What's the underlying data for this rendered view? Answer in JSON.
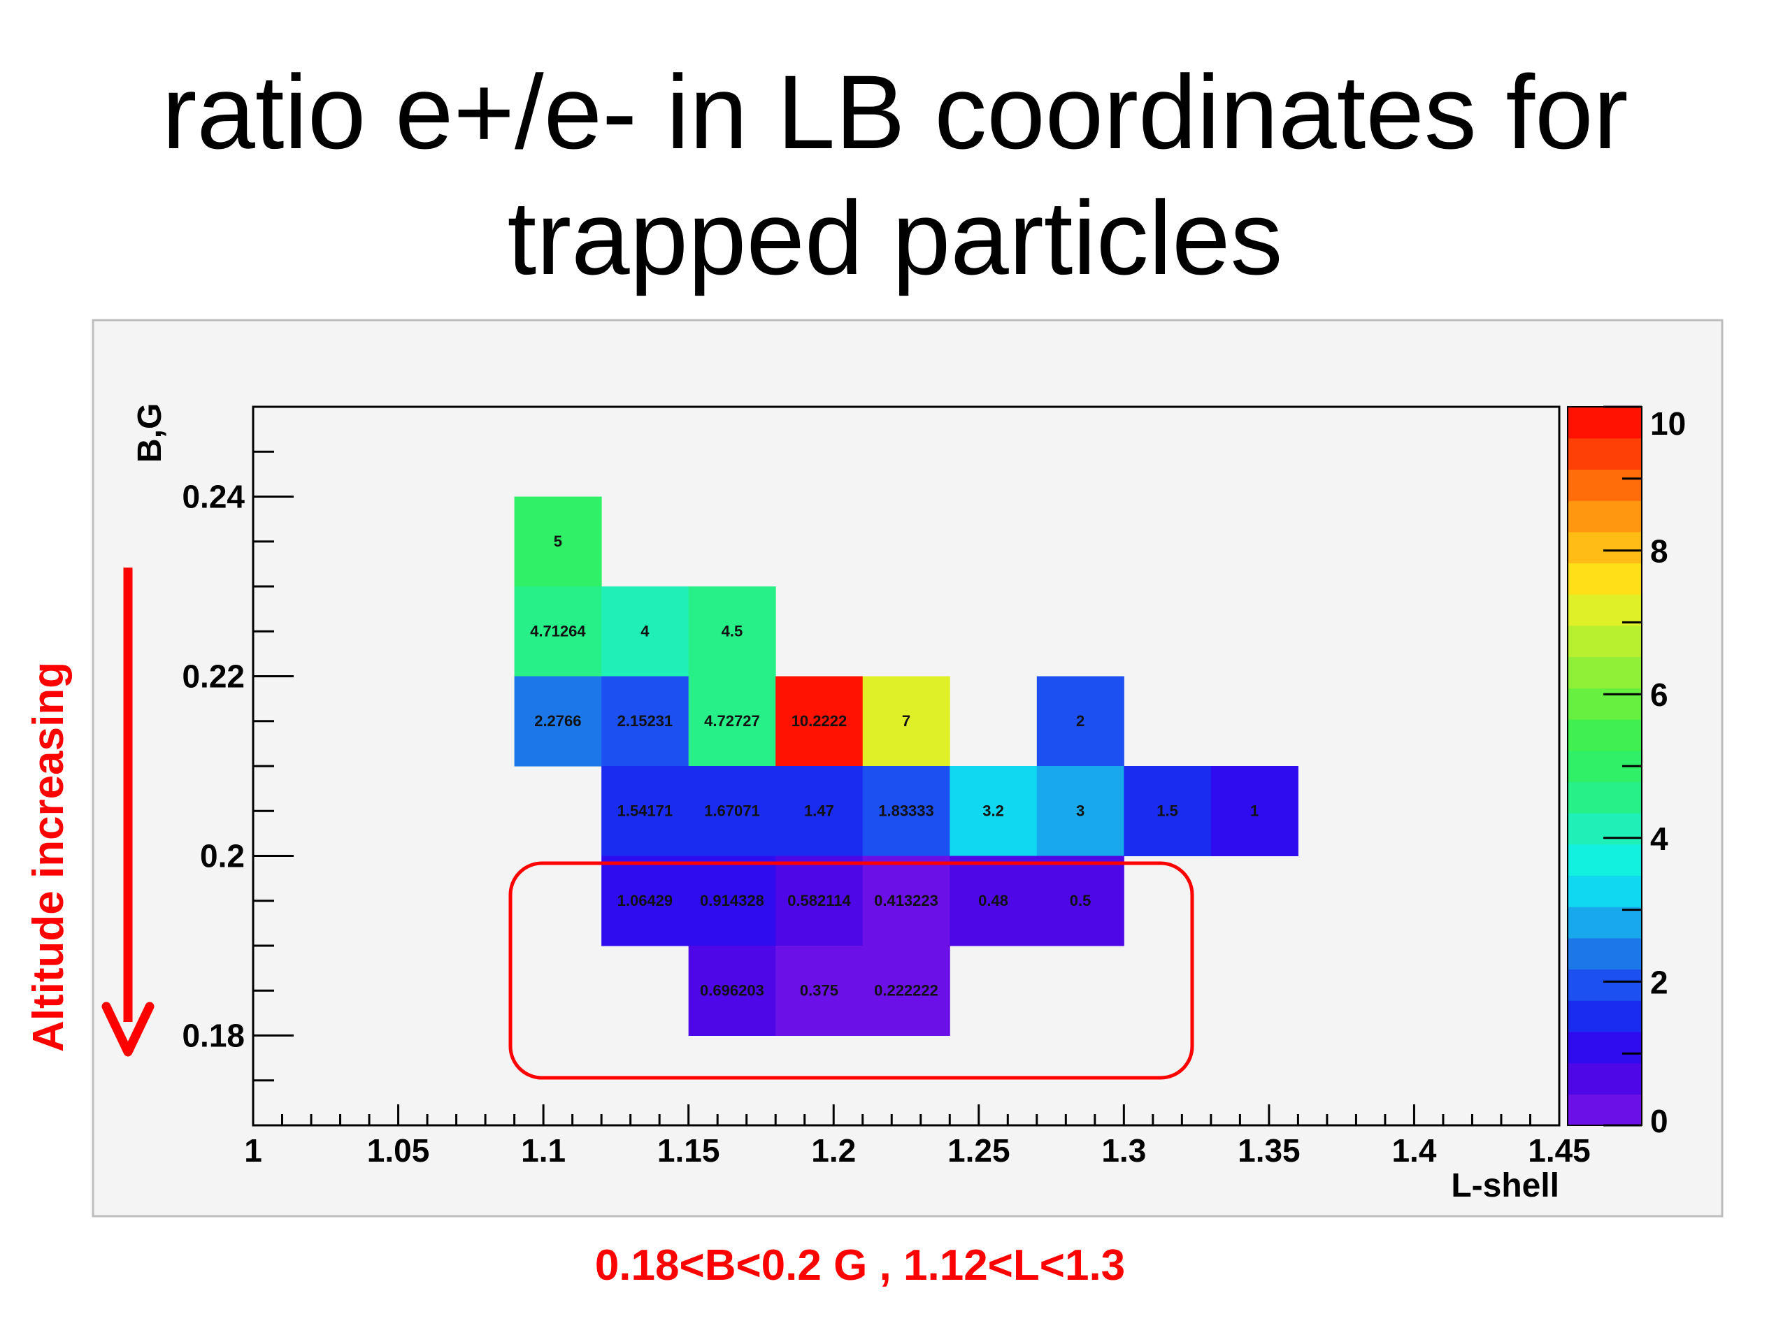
{
  "slide": {
    "title_line1": "ratio e+/e- in LB coordinates for",
    "title_line2": "trapped particles",
    "annotation_left": "Altitude increasing",
    "annotation_bottom": "0.18<B<0.2 G ,  1.12<L<1.3"
  },
  "colors": {
    "annotation": "#ff0000",
    "frame_bg": "#f4f4f4",
    "plot_bg": "#f4f4f4"
  },
  "chart_data": {
    "type": "heatmap",
    "xlabel": "L-shell",
    "ylabel": "B,G",
    "xlim": [
      1,
      1.45
    ],
    "ylim": [
      0.17,
      0.25
    ],
    "x_ticks": [
      "1",
      "1.05",
      "1.1",
      "1.15",
      "1.2",
      "1.25",
      "1.3",
      "1.35",
      "1.4",
      "1.45"
    ],
    "y_ticks": [
      "0.18",
      "0.2",
      "0.22",
      "0.24"
    ],
    "colorbar": {
      "min": 0,
      "max": 10,
      "ticks": [
        "0",
        "2",
        "4",
        "6",
        "8",
        "10"
      ]
    },
    "bin_width_x": 0.03,
    "bin_width_y": 0.01,
    "cells": [
      {
        "x": 1.09,
        "y": 0.23,
        "value": 5,
        "label": "5"
      },
      {
        "x": 1.09,
        "y": 0.22,
        "value": 4.71264,
        "label": "4.71264"
      },
      {
        "x": 1.12,
        "y": 0.22,
        "value": 4,
        "label": "4"
      },
      {
        "x": 1.15,
        "y": 0.22,
        "value": 4.5,
        "label": "4.5"
      },
      {
        "x": 1.09,
        "y": 0.21,
        "value": 2.2766,
        "label": "2.2766"
      },
      {
        "x": 1.12,
        "y": 0.21,
        "value": 2.15231,
        "label": "2.15231"
      },
      {
        "x": 1.15,
        "y": 0.21,
        "value": 4.72727,
        "label": "4.72727"
      },
      {
        "x": 1.18,
        "y": 0.21,
        "value": 10.2222,
        "label": "10.2222"
      },
      {
        "x": 1.21,
        "y": 0.21,
        "value": 7,
        "label": "7"
      },
      {
        "x": 1.27,
        "y": 0.21,
        "value": 2,
        "label": "2"
      },
      {
        "x": 1.12,
        "y": 0.2,
        "value": 1.54171,
        "label": "1.54171"
      },
      {
        "x": 1.15,
        "y": 0.2,
        "value": 1.67071,
        "label": "1.67071"
      },
      {
        "x": 1.18,
        "y": 0.2,
        "value": 1.47,
        "label": "1.47"
      },
      {
        "x": 1.21,
        "y": 0.2,
        "value": 1.83333,
        "label": "1.83333"
      },
      {
        "x": 1.24,
        "y": 0.2,
        "value": 3.2,
        "label": "3.2"
      },
      {
        "x": 1.27,
        "y": 0.2,
        "value": 3,
        "label": "3"
      },
      {
        "x": 1.3,
        "y": 0.2,
        "value": 1.5,
        "label": "1.5"
      },
      {
        "x": 1.33,
        "y": 0.2,
        "value": 1,
        "label": "1"
      },
      {
        "x": 1.12,
        "y": 0.19,
        "value": 1.06429,
        "label": "1.06429"
      },
      {
        "x": 1.15,
        "y": 0.19,
        "value": 0.914328,
        "label": "0.914328"
      },
      {
        "x": 1.18,
        "y": 0.19,
        "value": 0.582114,
        "label": "0.582114"
      },
      {
        "x": 1.21,
        "y": 0.19,
        "value": 0.413223,
        "label": "0.413223"
      },
      {
        "x": 1.24,
        "y": 0.19,
        "value": 0.48,
        "label": "0.48"
      },
      {
        "x": 1.27,
        "y": 0.19,
        "value": 0.5,
        "label": "0.5"
      },
      {
        "x": 1.15,
        "y": 0.18,
        "value": 0.696203,
        "label": "0.696203"
      },
      {
        "x": 1.18,
        "y": 0.18,
        "value": 0.375,
        "label": "0.375"
      },
      {
        "x": 1.21,
        "y": 0.18,
        "value": 0.222222,
        "label": "0.222222"
      }
    ],
    "highlight_region": {
      "x_range": [
        1.12,
        1.3
      ],
      "y_range": [
        0.18,
        0.2
      ]
    },
    "grid": false,
    "legend": "colorbar-right"
  }
}
